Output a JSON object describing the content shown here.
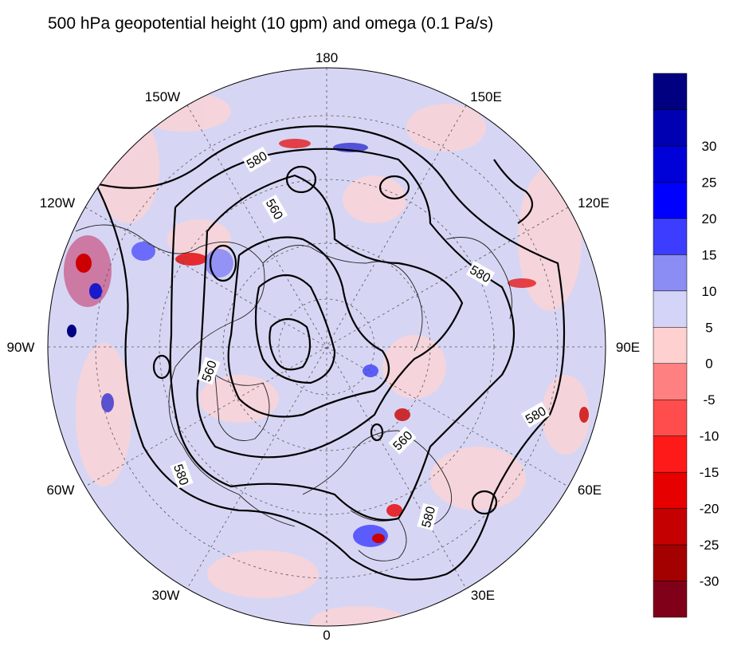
{
  "title": "500 hPa geopotential height (10 gpm) and omega (0.1 Pa/s)",
  "map": {
    "projection": "north-polar-stereographic",
    "background_color": "#d6d6f4",
    "longitude_labels": [
      {
        "text": "180",
        "lon": 180
      },
      {
        "text": "150E",
        "lon": 150
      },
      {
        "text": "120E",
        "lon": 120
      },
      {
        "text": "90E",
        "lon": 90
      },
      {
        "text": "60E",
        "lon": 60
      },
      {
        "text": "30E",
        "lon": 30
      },
      {
        "text": "0",
        "lon": 0
      },
      {
        "text": "30W",
        "lon": -30
      },
      {
        "text": "60W",
        "lon": -60
      },
      {
        "text": "90W",
        "lon": -90
      },
      {
        "text": "120W",
        "lon": -120
      },
      {
        "text": "150W",
        "lon": -150
      }
    ],
    "contour_labels": [
      "580",
      "560",
      "580",
      "560",
      "560",
      "580",
      "580",
      "580"
    ]
  },
  "colorbar": {
    "colors": [
      "#80001a",
      "#a30000",
      "#c40000",
      "#e60000",
      "#ff1a1a",
      "#ff4d4d",
      "#ff8080",
      "#ffd0d0",
      "#d4d4f8",
      "#8c8cf5",
      "#3d3dff",
      "#0000ff",
      "#0000d9",
      "#0000b3",
      "#000080"
    ],
    "tick_labels": [
      "-30",
      "-25",
      "-20",
      "-15",
      "-10",
      "-5",
      "0",
      "5",
      "10",
      "15",
      "20",
      "25",
      "30"
    ]
  }
}
